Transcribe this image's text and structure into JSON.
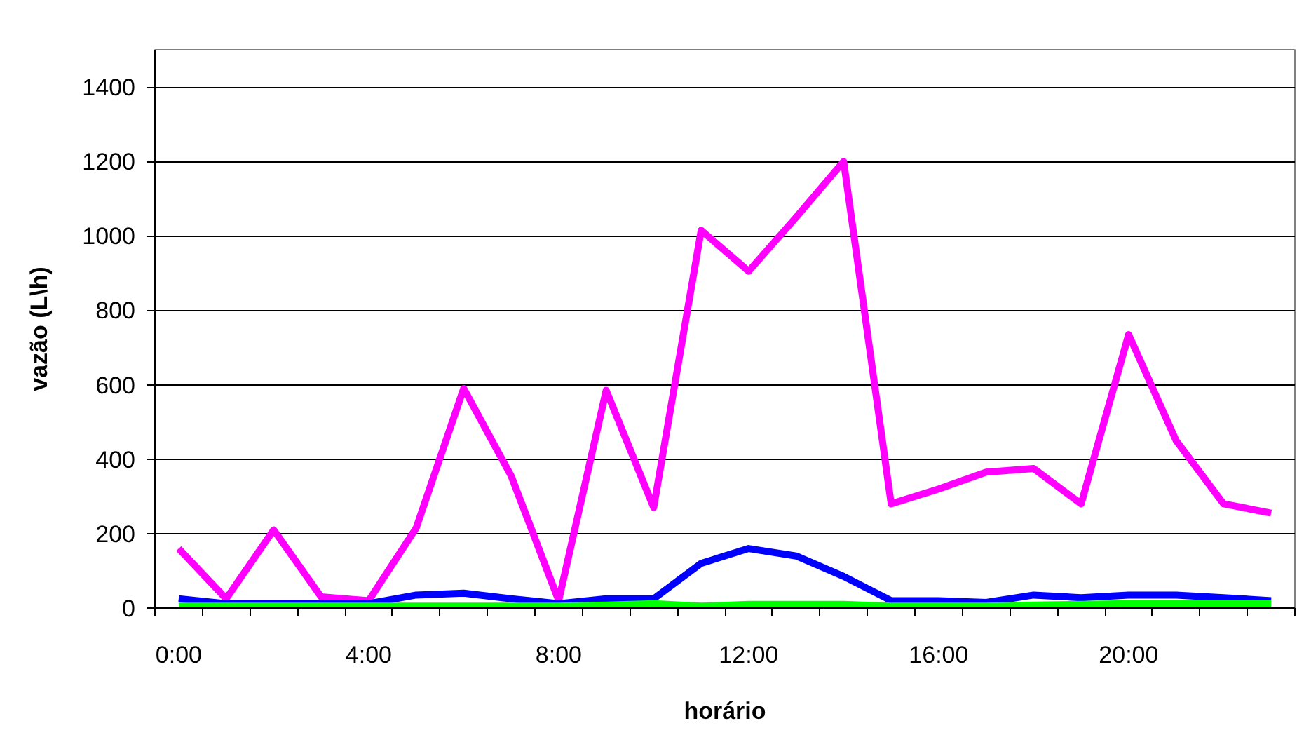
{
  "chart_data": {
    "type": "line",
    "xlabel": "horário",
    "ylabel": "vazão (L\\h)",
    "categories": [
      "0:00",
      null,
      null,
      null,
      "4:00",
      null,
      null,
      null,
      "8:00",
      null,
      null,
      null,
      "12:00",
      null,
      null,
      null,
      "16:00",
      null,
      null,
      null,
      "20:00",
      null,
      null,
      null
    ],
    "ylim": [
      0,
      1500
    ],
    "yticks": [
      0,
      200,
      400,
      600,
      800,
      1000,
      1200,
      1400
    ],
    "grid": "y",
    "line_style": "solid",
    "series": [
      {
        "color": "#ff00ff",
        "values": [
          160,
          25,
          210,
          30,
          20,
          215,
          590,
          355,
          20,
          585,
          270,
          1015,
          905,
          1050,
          1200,
          280,
          320,
          365,
          375,
          280,
          735,
          450,
          280,
          255
        ]
      },
      {
        "color": "#0000ff",
        "values": [
          25,
          12,
          12,
          12,
          12,
          35,
          40,
          25,
          12,
          25,
          25,
          120,
          160,
          140,
          85,
          20,
          20,
          15,
          35,
          28,
          35,
          35,
          28,
          20
        ]
      },
      {
        "color": "#00ff00",
        "values": [
          5,
          5,
          5,
          5,
          5,
          5,
          5,
          5,
          5,
          8,
          12,
          5,
          10,
          10,
          10,
          5,
          5,
          5,
          8,
          10,
          12,
          12,
          12,
          12
        ]
      }
    ]
  }
}
